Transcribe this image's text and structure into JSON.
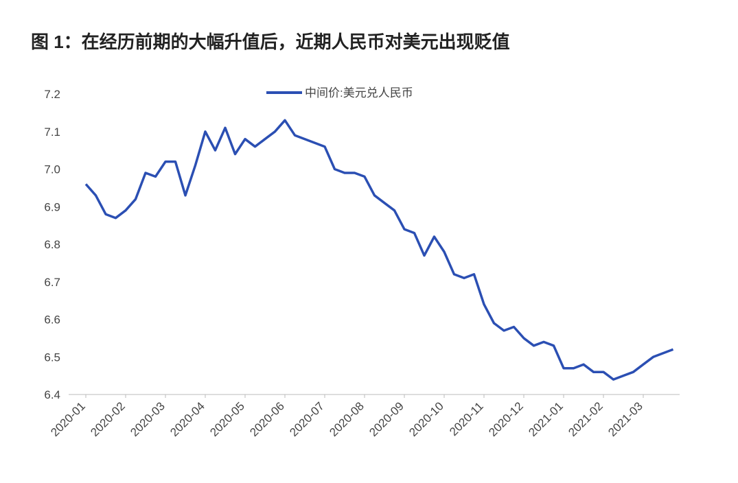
{
  "chart_data": {
    "type": "line",
    "title": "图 1：在经历前期的大幅升值后，近期人民币对美元出现贬值",
    "categories": [
      "2020-01",
      null,
      null,
      null,
      "2020-02",
      null,
      null,
      null,
      "2020-03",
      null,
      null,
      null,
      "2020-04",
      null,
      null,
      null,
      "2020-05",
      null,
      null,
      null,
      "2020-06",
      null,
      null,
      null,
      "2020-07",
      null,
      null,
      null,
      "2020-08",
      null,
      null,
      null,
      "2020-09",
      null,
      null,
      null,
      "2020-10",
      null,
      null,
      null,
      "2020-11",
      null,
      null,
      null,
      "2020-12",
      null,
      null,
      null,
      "2021-01",
      null,
      null,
      null,
      "2021-02",
      null,
      null,
      null,
      "2021-03",
      null,
      null,
      null
    ],
    "series": [
      {
        "name": "中间价:美元兑人民币",
        "color": "#2b4fb3",
        "values": [
          6.96,
          6.93,
          6.88,
          6.87,
          6.89,
          6.92,
          6.99,
          6.98,
          7.02,
          7.02,
          6.93,
          7.01,
          7.1,
          7.05,
          7.11,
          7.04,
          7.08,
          7.06,
          7.08,
          7.1,
          7.13,
          7.09,
          7.08,
          7.07,
          7.06,
          7.0,
          6.99,
          6.99,
          6.98,
          6.93,
          6.91,
          6.89,
          6.84,
          6.83,
          6.77,
          6.82,
          6.78,
          6.72,
          6.71,
          6.72,
          6.64,
          6.59,
          6.57,
          6.58,
          6.55,
          6.53,
          6.54,
          6.53,
          6.47,
          6.47,
          6.48,
          6.46,
          6.46,
          6.44,
          6.45,
          6.46,
          6.48,
          6.5,
          6.51,
          6.52
        ]
      }
    ],
    "ylim": [
      6.4,
      7.2
    ],
    "yticks": [
      6.4,
      6.5,
      6.6,
      6.7,
      6.8,
      6.9,
      {
        "value": 7,
        "label": "7.0"
      },
      7.1,
      7.2
    ],
    "legend": "top"
  }
}
